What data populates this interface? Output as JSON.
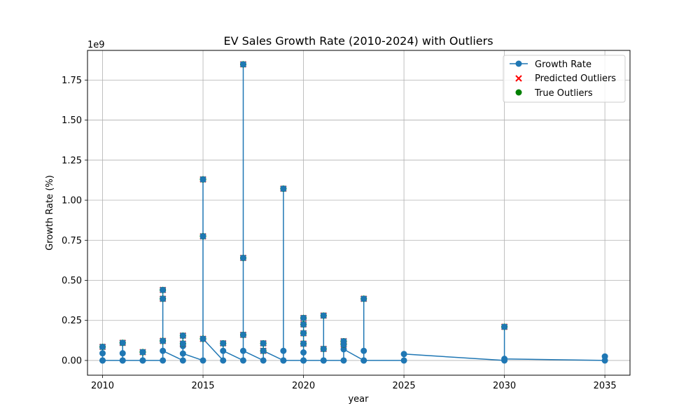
{
  "chart_data": {
    "type": "line",
    "title": "EV Sales Growth Rate (2010-2024) with Outliers",
    "xlabel": "year",
    "ylabel": "Growth Rate (%)",
    "y_scale_label": "1e9",
    "y_multiplier": 1000000000,
    "xlim": [
      2009.25,
      2036.25
    ],
    "ylim": [
      -0.092,
      1.935
    ],
    "x_ticks": [
      2010,
      2015,
      2020,
      2025,
      2030,
      2035
    ],
    "x_tick_labels": [
      "2010",
      "2015",
      "2020",
      "2025",
      "2030",
      "2035"
    ],
    "y_ticks": [
      0.0,
      0.25,
      0.5,
      0.75,
      1.0,
      1.25,
      1.5,
      1.75
    ],
    "y_tick_labels": [
      "0.00",
      "0.25",
      "0.50",
      "0.75",
      "1.00",
      "1.25",
      "1.50",
      "1.75"
    ],
    "grid": true,
    "legend_position": "top-right",
    "colors": {
      "growth": "#1f77b4",
      "predicted": "#ff0000",
      "true": "#008000",
      "grid": "#b0b0b0"
    },
    "series": [
      {
        "name": "Growth Rate",
        "marker": "circle",
        "x": [
          2010,
          2010,
          2010,
          2010,
          2011,
          2011,
          2011,
          2011,
          2012,
          2012,
          2012,
          2013,
          2013,
          2013,
          2013,
          2013,
          2014,
          2014,
          2014,
          2014,
          2014,
          2015,
          2015,
          2015,
          2015,
          2016,
          2016,
          2016,
          2017,
          2017,
          2017,
          2017,
          2017,
          2018,
          2018,
          2018,
          2019,
          2019,
          2019,
          2019,
          2020,
          2020,
          2020,
          2020,
          2020,
          2020,
          2020,
          2021,
          2021,
          2021,
          2021,
          2022,
          2022,
          2022,
          2022,
          2023,
          2023,
          2023,
          2023,
          2025,
          2025,
          2030,
          2030,
          2030,
          2035,
          2035
        ],
        "y": [
          0.0,
          0.045,
          0.085,
          0.0,
          0.0,
          0.045,
          0.11,
          0.0,
          0.0,
          0.052,
          0.0,
          0.0,
          0.44,
          0.385,
          0.122,
          0.06,
          0.0,
          0.155,
          0.105,
          0.09,
          0.043,
          0.0,
          1.13,
          0.775,
          0.135,
          0.0,
          0.107,
          0.06,
          0.0,
          1.848,
          0.64,
          0.16,
          0.06,
          0.0,
          0.107,
          0.06,
          0.0,
          1.072,
          0.06,
          0.0,
          0.0,
          0.265,
          0.225,
          0.17,
          0.105,
          0.05,
          0.0,
          0.0,
          0.28,
          0.072,
          0.0,
          0.0,
          0.12,
          0.1,
          0.07,
          0.0,
          0.385,
          0.06,
          0.0,
          0.0,
          0.04,
          0.0,
          0.21,
          0.01,
          0.0,
          0.025
        ]
      },
      {
        "name": "Predicted Outliers",
        "marker": "x",
        "x": [
          2010,
          2011,
          2012,
          2013,
          2013,
          2013,
          2014,
          2014,
          2015,
          2015,
          2015,
          2016,
          2017,
          2017,
          2017,
          2018,
          2018,
          2019,
          2020,
          2020,
          2020,
          2020,
          2021,
          2021,
          2022,
          2022,
          2023,
          2030
        ],
        "y": [
          0.085,
          0.11,
          0.052,
          0.44,
          0.385,
          0.122,
          0.155,
          0.105,
          1.13,
          0.775,
          0.135,
          0.107,
          1.848,
          0.64,
          0.16,
          0.107,
          0.06,
          1.072,
          0.265,
          0.225,
          0.17,
          0.105,
          0.28,
          0.072,
          0.12,
          0.1,
          0.385,
          0.21
        ]
      },
      {
        "name": "True Outliers",
        "marker": "circle",
        "x": [
          2010,
          2011,
          2012,
          2013,
          2013,
          2013,
          2014,
          2014,
          2015,
          2015,
          2015,
          2016,
          2017,
          2017,
          2017,
          2018,
          2018,
          2019,
          2020,
          2020,
          2020,
          2020,
          2021,
          2021,
          2022,
          2022,
          2023,
          2030
        ],
        "y": [
          0.085,
          0.11,
          0.052,
          0.44,
          0.385,
          0.122,
          0.155,
          0.105,
          1.13,
          0.775,
          0.135,
          0.107,
          1.848,
          0.64,
          0.16,
          0.107,
          0.06,
          1.072,
          0.265,
          0.225,
          0.17,
          0.105,
          0.28,
          0.072,
          0.12,
          0.1,
          0.385,
          0.21
        ]
      }
    ],
    "legend": [
      "Growth Rate",
      "Predicted Outliers",
      "True Outliers"
    ]
  }
}
